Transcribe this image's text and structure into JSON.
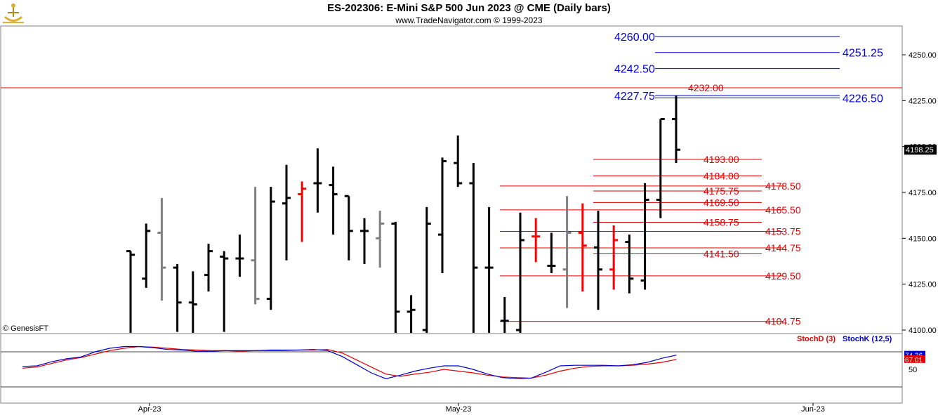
{
  "header": {
    "title": "ES-202306:  E-Mini S&P 500 Jun 2023 @ CME  (Daily bars)",
    "subtitle": "www.TradeNavigator.com © 1999-2023",
    "copyright": "© GenesisFT"
  },
  "colors": {
    "up_bar": "#000000",
    "neutral_bar": "#808080",
    "highlight_bar": "#ff0000",
    "level_red": "#e00000",
    "level_blue": "#0000e0",
    "stoch_d": "#e00000",
    "stoch_k": "#0000cc"
  },
  "chart_data": [
    {
      "type": "ohlc",
      "title": "ES-202306:  E-Mini S&P 500 Jun 2023 @ CME  (Daily bars)",
      "x_ticks": [
        "Apr-23",
        "May-23",
        "Jun-23"
      ],
      "y_ticks": [
        "4100.00",
        "4125.00",
        "4150.00",
        "4175.00",
        "4200.00",
        "4225.00",
        "4250.00"
      ],
      "ylim": [
        4098,
        4262
      ],
      "last_price": "4198.25",
      "grid": false,
      "bars": [
        {
          "o": 4143,
          "h": 4143,
          "l": 4098,
          "c": 4141,
          "color": "black"
        },
        {
          "o": 4128,
          "h": 4158,
          "l": 4123,
          "c": 4154,
          "color": "black"
        },
        {
          "o": 4153,
          "h": 4172,
          "l": 4116,
          "c": 4134,
          "color": "gray"
        },
        {
          "o": 4134,
          "h": 4136,
          "l": 4099,
          "c": 4115,
          "color": "black"
        },
        {
          "o": 4115,
          "h": 4132,
          "l": 4098,
          "c": 4114,
          "color": "black"
        },
        {
          "o": 4130,
          "h": 4147,
          "l": 4121,
          "c": 4143,
          "color": "black"
        },
        {
          "o": 4140,
          "h": 4143,
          "l": 4099,
          "c": 4139,
          "color": "black"
        },
        {
          "o": 4139,
          "h": 4152,
          "l": 4129,
          "c": 4139,
          "color": "black"
        },
        {
          "o": 4138,
          "h": 4178,
          "l": 4114,
          "c": 4117,
          "color": "gray"
        },
        {
          "o": 4117,
          "h": 4178,
          "l": 4111,
          "c": 4170,
          "color": "black"
        },
        {
          "o": 4169,
          "h": 4190,
          "l": 4138,
          "c": 4172,
          "color": "black"
        },
        {
          "o": 4174,
          "h": 4181,
          "l": 4148,
          "c": 4177,
          "color": "red"
        },
        {
          "o": 4180,
          "h": 4199,
          "l": 4164,
          "c": 4180,
          "color": "black"
        },
        {
          "o": 4179,
          "h": 4189,
          "l": 4152,
          "c": 4174,
          "color": "black"
        },
        {
          "o": 4173,
          "h": 4173,
          "l": 4138,
          "c": 4154,
          "color": "black"
        },
        {
          "o": 4154,
          "h": 4161,
          "l": 4136,
          "c": 4154,
          "color": "black"
        },
        {
          "o": 4150,
          "h": 4165,
          "l": 4134,
          "c": 4158,
          "color": "gray"
        },
        {
          "o": 4158,
          "h": 4159,
          "l": 4098,
          "c": 4110,
          "color": "black"
        },
        {
          "o": 4110,
          "h": 4119,
          "l": 4098,
          "c": 4111,
          "color": "black"
        },
        {
          "o": 4100,
          "h": 4167,
          "l": 4098,
          "c": 4158,
          "color": "black"
        },
        {
          "o": 4152,
          "h": 4194,
          "l": 4131,
          "c": 4192,
          "color": "black"
        },
        {
          "o": 4191,
          "h": 4206,
          "l": 4178,
          "c": 4180,
          "color": "black"
        },
        {
          "o": 4180,
          "h": 4191,
          "l": 4098,
          "c": 4134,
          "color": "black"
        },
        {
          "o": 4134,
          "h": 4167,
          "l": 4098,
          "c": 4134,
          "color": "black"
        },
        {
          "o": 4105,
          "h": 4118,
          "l": 4098,
          "c": 4105,
          "color": "black"
        },
        {
          "o": 4100,
          "h": 4164,
          "l": 4098,
          "c": 4149,
          "color": "black"
        },
        {
          "o": 4151,
          "h": 4161,
          "l": 4137,
          "c": 4151,
          "color": "red"
        },
        {
          "o": 4135,
          "h": 4153,
          "l": 4131,
          "c": 4135,
          "color": "black"
        },
        {
          "o": 4133,
          "h": 4173,
          "l": 4112,
          "c": 4153,
          "color": "gray"
        },
        {
          "o": 4153,
          "h": 4169,
          "l": 4121,
          "c": 4146,
          "color": "red"
        },
        {
          "o": 4145,
          "h": 4165,
          "l": 4111,
          "c": 4133,
          "color": "black"
        },
        {
          "o": 4133,
          "h": 4157,
          "l": 4122,
          "c": 4149,
          "color": "red"
        },
        {
          "o": 4148,
          "h": 4152,
          "l": 4120,
          "c": 4128,
          "color": "black"
        },
        {
          "o": 4127,
          "h": 4180,
          "l": 4122,
          "c": 4171,
          "color": "black"
        },
        {
          "o": 4171,
          "h": 4215,
          "l": 4161,
          "c": 4215,
          "color": "black"
        },
        {
          "o": 4215,
          "h": 4227.75,
          "l": 4191,
          "c": 4198.25,
          "color": "black"
        }
      ],
      "levels_red": [
        {
          "label": "4232.00",
          "value": 4232.0
        },
        {
          "label": "4193.00",
          "value": 4193.0
        },
        {
          "label": "4184.00",
          "value": 4184.0
        },
        {
          "label": "4178.50",
          "value": 4178.5
        },
        {
          "label": "4175.75",
          "value": 4175.75
        },
        {
          "label": "4169.50",
          "value": 4169.5
        },
        {
          "label": "4165.50",
          "value": 4165.5
        },
        {
          "label": "4158.75",
          "value": 4158.75
        },
        {
          "label": "4153.75",
          "value": 4153.75
        },
        {
          "label": "4144.75",
          "value": 4144.75
        },
        {
          "label": "4141.50",
          "value": 4141.5
        },
        {
          "label": "4129.50",
          "value": 4129.5
        },
        {
          "label": "4104.75",
          "value": 4104.75
        }
      ],
      "levels_blue": [
        {
          "label": "4260.00",
          "value": 4260.0
        },
        {
          "label": "4251.25",
          "value": 4251.25
        },
        {
          "label": "4242.50",
          "value": 4242.5
        },
        {
          "label": "4227.75",
          "value": 4227.75
        },
        {
          "label": "4226.50",
          "value": 4226.5
        }
      ]
    },
    {
      "type": "line",
      "title": "",
      "y_ticks": [
        "50"
      ],
      "ylim": [
        0,
        100
      ],
      "reference_lines": [
        80,
        20
      ],
      "series": [
        {
          "name": "StochD (3)",
          "last_label": "67.01",
          "values": [
            52,
            54,
            60,
            66,
            70,
            76,
            82,
            86,
            89,
            88,
            86,
            84,
            83,
            82,
            82,
            81,
            82,
            82,
            82,
            83,
            83,
            84,
            78,
            66,
            54,
            42,
            38,
            42,
            45,
            50,
            47,
            44,
            40,
            37,
            36,
            35,
            40,
            47,
            52,
            55,
            56,
            56,
            57,
            59,
            62,
            67
          ]
        },
        {
          "name": "StochK (12,5)",
          "last_label": "74.36",
          "values": [
            55,
            56,
            63,
            68,
            71,
            80,
            86,
            89,
            89,
            87,
            84,
            83,
            81,
            81,
            82,
            82,
            82,
            83,
            83,
            83,
            84,
            82,
            72,
            58,
            44,
            34,
            40,
            47,
            52,
            56,
            56,
            50,
            42,
            36,
            34,
            35,
            45,
            56,
            57,
            57,
            57,
            56,
            58,
            62,
            69,
            74.36
          ]
        }
      ]
    }
  ]
}
